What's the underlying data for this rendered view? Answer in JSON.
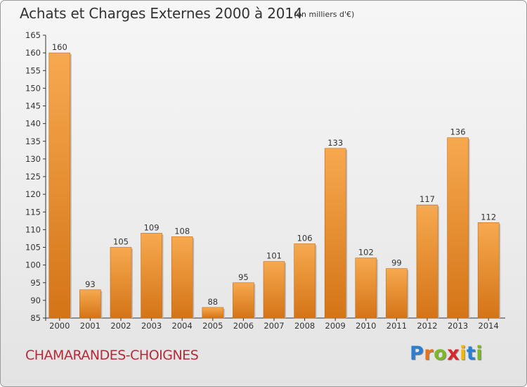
{
  "header": {
    "title": "Achats et Charges Externes 2000 à 2014",
    "unit": "(en milliers d'€)"
  },
  "footer": {
    "commune": "CHAMARANDES-CHOIGNES",
    "logo": "Proxiti",
    "logo_colors": [
      "#2a7fd0",
      "#e8731e",
      "#7cb829",
      "#d9262c",
      "#f2b705",
      "#2a7fd0",
      "#7cb829"
    ]
  },
  "colors": {
    "bar_light": "#f7a94f",
    "bar_dark": "#d47417",
    "commune_text": "#b52b3a"
  },
  "chart_data": {
    "type": "bar",
    "title": "Achats et Charges Externes 2000 à 2014",
    "subtitle": "(en milliers d'€)",
    "categories": [
      "2000",
      "2001",
      "2002",
      "2003",
      "2004",
      "2005",
      "2006",
      "2007",
      "2008",
      "2009",
      "2010",
      "2011",
      "2012",
      "2013",
      "2014"
    ],
    "values": [
      160,
      93,
      105,
      109,
      108,
      88,
      95,
      101,
      106,
      133,
      102,
      99,
      117,
      136,
      112
    ],
    "ylim": [
      85,
      165
    ],
    "yticks": [
      85,
      90,
      95,
      100,
      105,
      110,
      115,
      120,
      125,
      130,
      135,
      140,
      145,
      150,
      155,
      160,
      165
    ],
    "data_labels": true,
    "grid": false
  }
}
